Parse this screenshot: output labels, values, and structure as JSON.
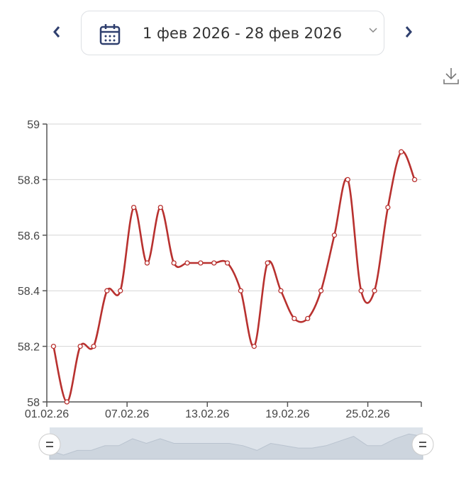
{
  "header": {
    "date_range": "1 фев 2026 - 28 фев 2026",
    "prev_icon": "chevron-left-icon",
    "next_icon": "chevron-right-icon",
    "calendar_icon": "calendar-icon",
    "dropdown_icon": "chevron-down-icon",
    "download_icon": "download-icon"
  },
  "chart_data": {
    "type": "line",
    "smooth": true,
    "color": "#b8312f",
    "grid": true,
    "x": [
      "01.02.26",
      "02.02.26",
      "03.02.26",
      "04.02.26",
      "05.02.26",
      "06.02.26",
      "07.02.26",
      "08.02.26",
      "09.02.26",
      "10.02.26",
      "11.02.26",
      "12.02.26",
      "13.02.26",
      "14.02.26",
      "15.02.26",
      "16.02.26",
      "17.02.26",
      "18.02.26",
      "19.02.26",
      "20.02.26",
      "21.02.26",
      "22.02.26",
      "23.02.26",
      "24.02.26",
      "25.02.26",
      "26.02.26",
      "27.02.26",
      "28.02.26"
    ],
    "values": [
      58.2,
      58.0,
      58.2,
      58.2,
      58.4,
      58.4,
      58.7,
      58.5,
      58.7,
      58.5,
      58.5,
      58.5,
      58.5,
      58.5,
      58.4,
      58.2,
      58.5,
      58.4,
      58.3,
      58.3,
      58.4,
      58.6,
      58.8,
      58.4,
      58.4,
      58.7,
      58.9,
      58.8
    ],
    "ylim": [
      58,
      59
    ],
    "y_ticks": [
      "58",
      "58.2",
      "58.4",
      "58.6",
      "58.8",
      "59"
    ],
    "x_ticks": [
      "01.02.26",
      "07.02.26",
      "13.02.26",
      "19.02.26",
      "25.02.26"
    ],
    "data_zoom": {
      "start": 0,
      "end": 100
    }
  }
}
